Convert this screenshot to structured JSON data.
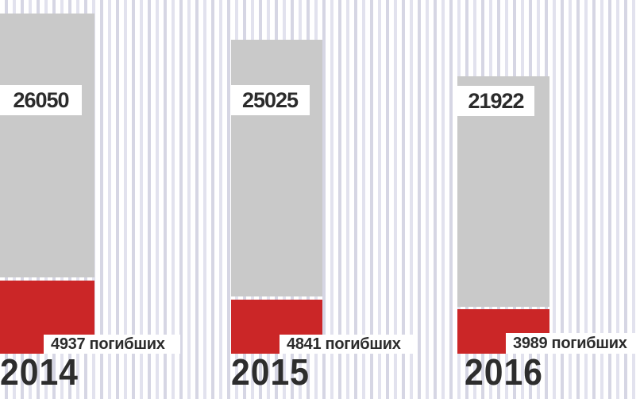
{
  "chart_data": {
    "type": "bar",
    "title": "",
    "categories": [
      "2014",
      "2015",
      "2016"
    ],
    "series": [
      {
        "name": "gray-total-bar",
        "values": [
          26050,
          25025,
          21922
        ],
        "color": "#c9c9c9"
      },
      {
        "name": "red-deaths-bar",
        "values": [
          4937,
          4841,
          3989
        ],
        "color": "#cb2627"
      }
    ],
    "columns": [
      {
        "year": "2014",
        "value_label": "26050",
        "deaths_label": "4937 погибших"
      },
      {
        "year": "2015",
        "value_label": "25025",
        "deaths_label": "4841 погибших"
      },
      {
        "year": "2016",
        "value_label": "21922",
        "deaths_label": "3989 погибших"
      }
    ],
    "legend": "none",
    "axes": "none",
    "layout": "three vertical stacked columns, labels in white boxes over bars, year captions below",
    "colors": {
      "bar_gray": "#c9c9c9",
      "bar_red": "#cb2627",
      "label_text": "#2b2b2b",
      "year_text": "#2d2d2d",
      "stripe_dark": "#d6d6e4",
      "stripe_light": "#e2e2ee",
      "background": "#ffffff"
    }
  }
}
